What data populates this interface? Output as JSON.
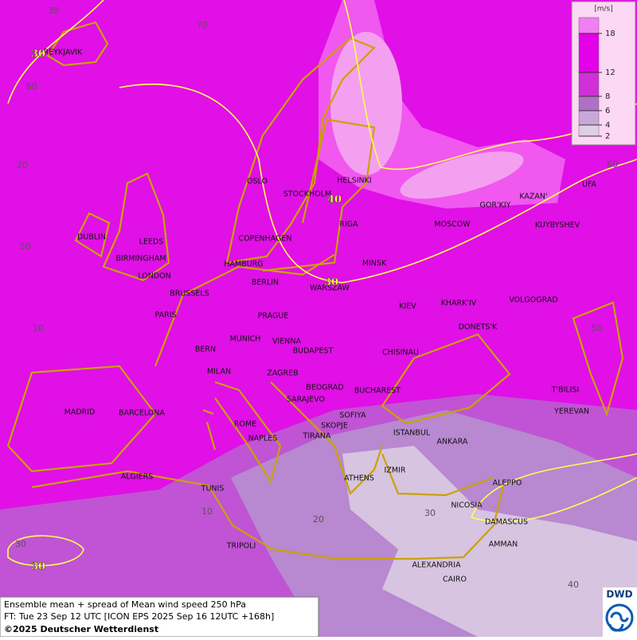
{
  "legend": {
    "unit": "[m/s]",
    "levels": [
      2,
      4,
      6,
      8,
      12,
      18
    ],
    "colors": [
      "#ddd0e4",
      "#c8a8d8",
      "#b070c8",
      "#d030d8",
      "#e400e8",
      "#f080f0"
    ]
  },
  "grid_labels": [
    30,
    70,
    60,
    20,
    60,
    50,
    10,
    50,
    10,
    20,
    30,
    40,
    30
  ],
  "contour_labels": [
    30,
    40,
    30,
    30
  ],
  "cities": [
    "REYKJAVIK",
    "OSLO",
    "STOCKHOLM",
    "HELSINKI",
    "DUBLIN",
    "LEEDS",
    "BIRMINGHAM",
    "LONDON",
    "COPENHAGEN",
    "HAMBURG",
    "RIGA",
    "MOSCOW",
    "GOR'KIY",
    "KAZAN'",
    "UFA",
    "KUYBYSHEV",
    "MINSK",
    "BERLIN",
    "WARSZAW",
    "BRUSSELS",
    "PARIS",
    "PRAGUE",
    "KIEV",
    "KHARK'IV",
    "VOLGOGRAD",
    "DONETS'K",
    "MUNICH",
    "VIENNA",
    "BERN",
    "BUDAPEST",
    "CHISINAU",
    "MILAN",
    "ZAGREB",
    "BEOGRAD",
    "BUCHAREST",
    "T'BILISI",
    "SARAJEVO",
    "MADRID",
    "BARCELONA",
    "SOFIYA",
    "YEREVAN",
    "ROME",
    "SKOPJE",
    "ISTANBUL",
    "TIRANA",
    "NAPLES",
    "ANKARA",
    "ALGIERS",
    "IZMIR",
    "ATHENS",
    "ALEPPO",
    "TUNIS",
    "NICOSIA",
    "DAMASCUS",
    "TRIPOLI",
    "AMMAN",
    "ALEXANDRIA",
    "CAIRO"
  ],
  "footer": {
    "title": "Ensemble mean + spread of Mean wind speed 250 hPa",
    "forecast": "FT: Tue 23 Sep 12 UTC [ICON EPS 2025 Sep 16 12UTC +168h]",
    "copyright": "©2025 Deutscher Wetterdienst"
  },
  "logo": "DWD"
}
